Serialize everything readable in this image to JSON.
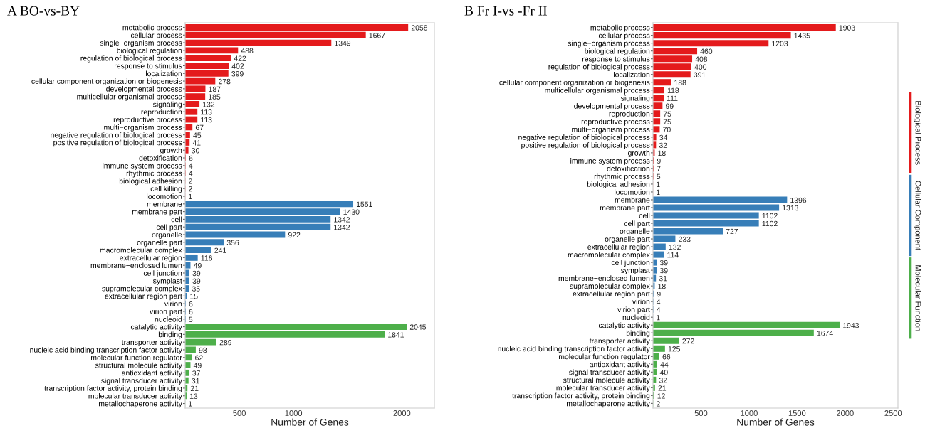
{
  "chart_data": [
    {
      "type": "bar",
      "orientation": "horizontal",
      "title": "A BO-vs-BY",
      "xlabel": "Number of Genes",
      "categories": [
        "metabolic process",
        "cellular process",
        "single−organism process",
        "biological regulation",
        "regulation of biological process",
        "response to stimulus",
        "localization",
        "cellular component organization or biogenesis",
        "developmental process",
        "multicellular organismal process",
        "signaling",
        "reproduction",
        "reproductive process",
        "multi−organism process",
        "negative regulation of biological process",
        "positive regulation of biological process",
        "growth",
        "detoxification",
        "immune system process",
        "rhythmic process",
        "biological adhesion",
        "cell killing",
        "locomotion",
        "membrane",
        "membrane part",
        "cell",
        "cell part",
        "organelle",
        "organelle part",
        "macromolecular complex",
        "extracellular region",
        "membrane−enclosed lumen",
        "cell junction",
        "symplast",
        "supramolecular complex",
        "extracellular region part",
        "virion",
        "virion part",
        "nucleoid",
        "catalytic activity",
        "binding",
        "transporter activity",
        "nucleic acid binding transcription factor activity",
        "molecular function regulator",
        "structural molecule activity",
        "antioxidant activity",
        "signal transducer activity",
        "transcription factor activity, protein binding",
        "molecular transducer activity",
        "metallochaperone activity"
      ],
      "series": [
        {
          "color": "#e41a1c",
          "values": [
            2058,
            1667,
            1349,
            488,
            422,
            402,
            399,
            278,
            187,
            185,
            132,
            113,
            113,
            67,
            45,
            41,
            30,
            6,
            4,
            4,
            2,
            2,
            1,
            null,
            null,
            null,
            null,
            null,
            null,
            null,
            null,
            null,
            null,
            null,
            null,
            null,
            null,
            null,
            null,
            null,
            null,
            null,
            null,
            null,
            null,
            null,
            null,
            null,
            null,
            null
          ]
        },
        {
          "color": "#377eb8",
          "values": [
            null,
            null,
            null,
            null,
            null,
            null,
            null,
            null,
            null,
            null,
            null,
            null,
            null,
            null,
            null,
            null,
            null,
            null,
            null,
            null,
            null,
            null,
            null,
            1551,
            1430,
            1342,
            1342,
            922,
            356,
            241,
            116,
            49,
            39,
            39,
            35,
            15,
            6,
            6,
            5,
            null,
            null,
            null,
            null,
            null,
            null,
            null,
            null,
            null,
            null,
            null
          ]
        },
        {
          "color": "#4daf4a",
          "values": [
            null,
            null,
            null,
            null,
            null,
            null,
            null,
            null,
            null,
            null,
            null,
            null,
            null,
            null,
            null,
            null,
            null,
            null,
            null,
            null,
            null,
            null,
            null,
            null,
            null,
            null,
            null,
            null,
            null,
            null,
            null,
            null,
            null,
            null,
            null,
            null,
            null,
            null,
            null,
            2045,
            1841,
            289,
            98,
            62,
            49,
            37,
            31,
            21,
            13,
            1
          ]
        }
      ],
      "xlim": [
        0,
        2300
      ],
      "xticks": [
        500,
        1000,
        2000
      ],
      "data_labels": true,
      "grid": false,
      "legend": false
    },
    {
      "type": "bar",
      "orientation": "horizontal",
      "title": "B Fr I-vs -Fr II",
      "xlabel": "Number of Genes",
      "categories": [
        "metabolic process",
        "cellular process",
        "single−organism process",
        "biological regulation",
        "response to stimulus",
        "regulation of biological process",
        "localization",
        "cellular component organization or biogenesis",
        "multicellular organismal process",
        "signaling",
        "developmental process",
        "reproduction",
        "reproductive process",
        "multi−organism process",
        "negative regulation of biological process",
        "positive regulation of biological process",
        "growth",
        "immune system process",
        "detoxification",
        "rhythmic process",
        "biological adhesion",
        "locomotion",
        "membrane",
        "membrane part",
        "cell",
        "cell part",
        "organelle",
        "organelle part",
        "extracellular region",
        "macromolecular complex",
        "cell junction",
        "symplast",
        "membrane−enclosed lumen",
        "supramolecular complex",
        "extracellular region part",
        "virion",
        "virion part",
        "nucleoid",
        "catalytic activity",
        "binding",
        "transporter activity",
        "nucleic acid binding transcription factor activity",
        "molecular function regulator",
        "antioxidant activity",
        "signal transducer activity",
        "structural molecule activity",
        "molecular transducer activity",
        "transcription factor activity, protein binding",
        "metallochaperone activity"
      ],
      "series": [
        {
          "name": "Biological Process",
          "color": "#e41a1c",
          "values": [
            1903,
            1435,
            1203,
            460,
            408,
            400,
            391,
            188,
            118,
            111,
            99,
            75,
            75,
            70,
            34,
            32,
            18,
            9,
            7,
            5,
            1,
            1,
            null,
            null,
            null,
            null,
            null,
            null,
            null,
            null,
            null,
            null,
            null,
            null,
            null,
            null,
            null,
            null,
            null,
            null,
            null,
            null,
            null,
            null,
            null,
            null,
            null,
            null,
            null
          ]
        },
        {
          "name": "Cellular Component",
          "color": "#377eb8",
          "values": [
            null,
            null,
            null,
            null,
            null,
            null,
            null,
            null,
            null,
            null,
            null,
            null,
            null,
            null,
            null,
            null,
            null,
            null,
            null,
            null,
            null,
            null,
            1396,
            1313,
            1102,
            1102,
            727,
            233,
            132,
            114,
            39,
            39,
            31,
            18,
            9,
            4,
            4,
            1,
            null,
            null,
            null,
            null,
            null,
            null,
            null,
            null,
            null,
            null,
            null
          ]
        },
        {
          "name": "Molecular Function",
          "color": "#4daf4a",
          "values": [
            null,
            null,
            null,
            null,
            null,
            null,
            null,
            null,
            null,
            null,
            null,
            null,
            null,
            null,
            null,
            null,
            null,
            null,
            null,
            null,
            null,
            null,
            null,
            null,
            null,
            null,
            null,
            null,
            null,
            null,
            null,
            null,
            null,
            null,
            null,
            null,
            null,
            null,
            1943,
            1674,
            272,
            125,
            66,
            44,
            40,
            32,
            21,
            12,
            2
          ]
        }
      ],
      "xlim": [
        0,
        2550
      ],
      "xticks": [
        500,
        1000,
        1500,
        2000,
        2500
      ],
      "data_labels": true,
      "grid": false,
      "legend": "right"
    }
  ]
}
